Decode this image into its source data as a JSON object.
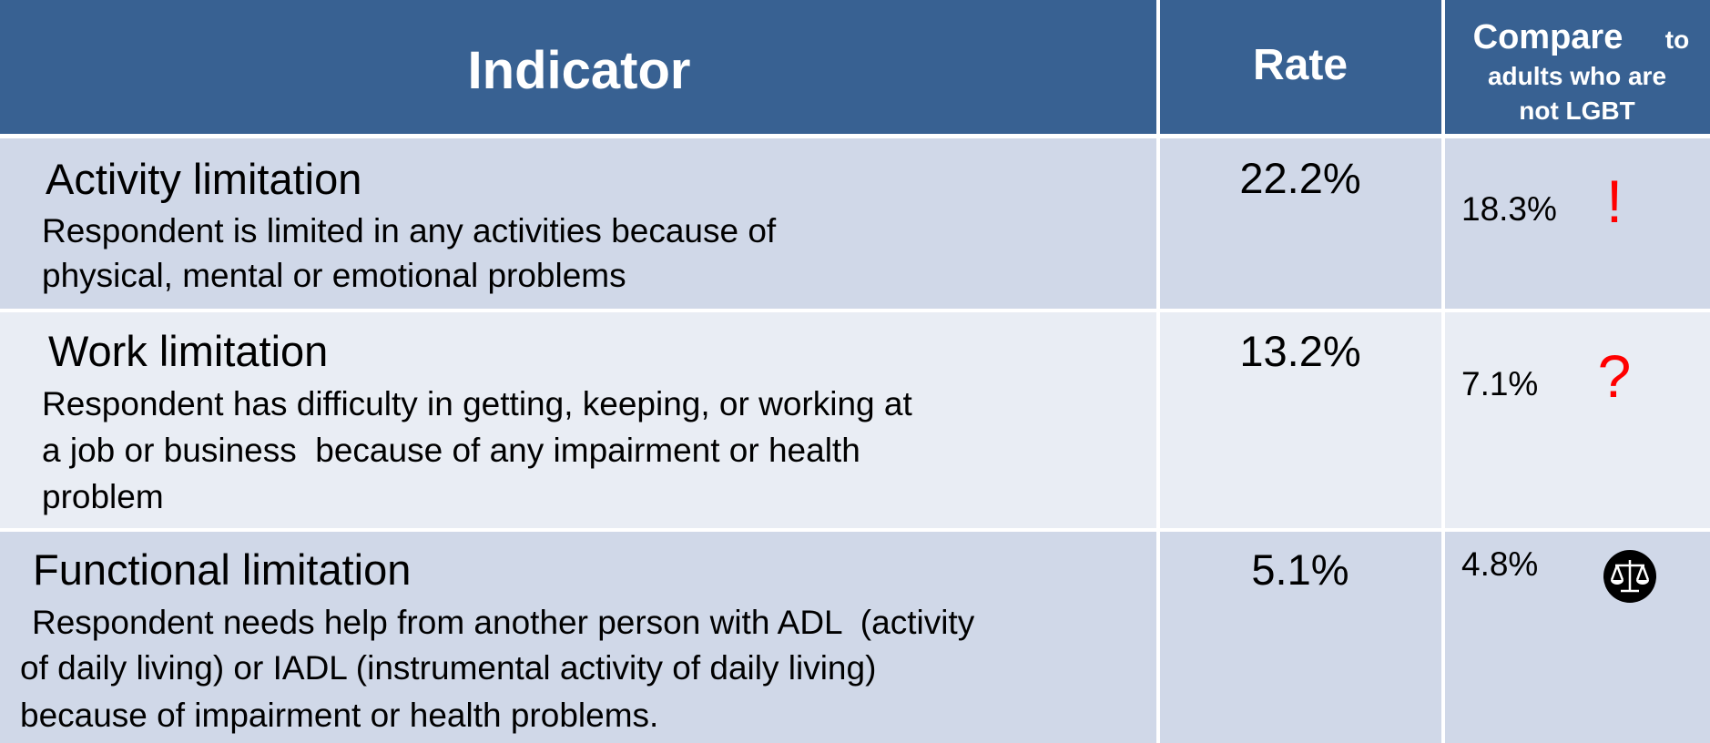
{
  "table": {
    "header": {
      "indicator": "Indicator",
      "rate": "Rate",
      "compare_main": "Compare",
      "compare_rest": [
        "to",
        "adults who are",
        "not LGBT"
      ]
    },
    "rows": [
      {
        "title": "Activity limitation",
        "description": [
          "Respondent is limited in any activities because of",
          "physical, mental or emotional problems"
        ],
        "rate": "22.2%",
        "compare": "18.3%",
        "symbol": "!"
      },
      {
        "title": "Work limitation",
        "description": [
          "Respondent has difficulty in getting, keeping, or working at",
          "a job or business  because of any impairment or health",
          "problem"
        ],
        "rate": "13.2%",
        "compare": "7.1%",
        "symbol": "?"
      },
      {
        "title": "Functional limitation",
        "description": [
          "Respondent needs help from another person with ADL  (activity",
          "of daily living) or IADL (instrumental activity of daily living)",
          "because of impairment or health problems."
        ],
        "rate": "5.1%",
        "compare": "4.8%"
      }
    ]
  }
}
